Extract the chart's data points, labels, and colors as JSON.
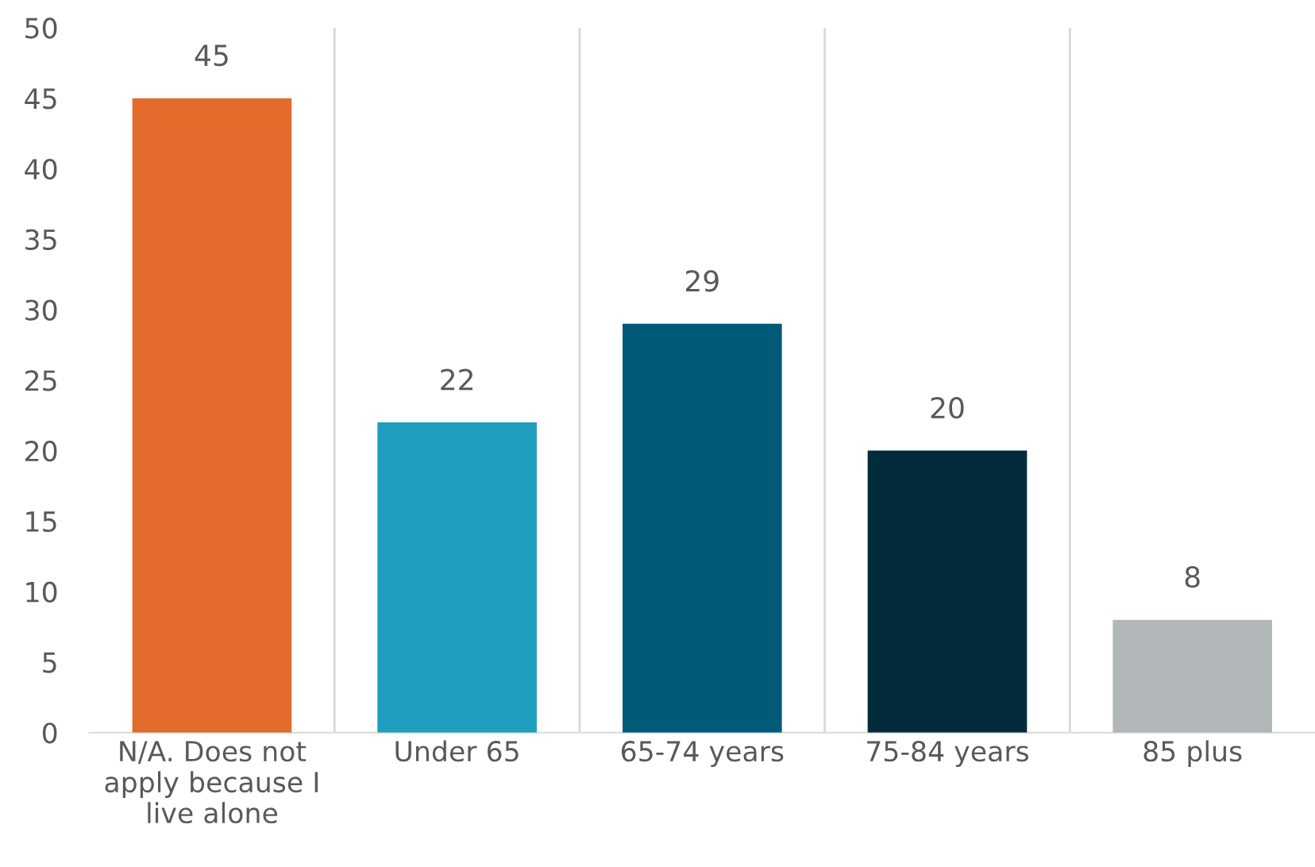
{
  "chart_data": {
    "type": "bar",
    "categories": [
      "N/A. Does not apply because I live alone",
      "Under 65",
      "65-74 years",
      "75-84 years",
      "85 plus"
    ],
    "values": [
      45,
      22,
      29,
      20,
      8
    ],
    "colors": [
      "#e36c2c",
      "#1f9ebf",
      "#005a78",
      "#022b3c",
      "#b2b8ba"
    ],
    "ylim": [
      0,
      50
    ],
    "yticks": [
      0,
      5,
      10,
      15,
      20,
      25,
      30,
      35,
      40,
      45,
      50
    ],
    "grid": "x",
    "data_labels": true
  }
}
